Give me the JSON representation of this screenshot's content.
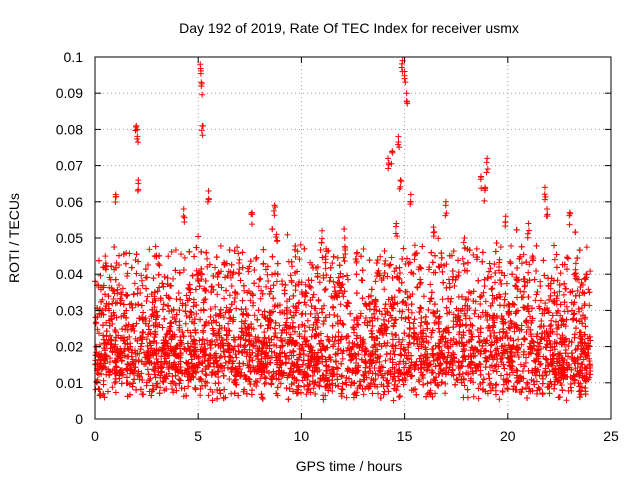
{
  "chart_data": {
    "type": "scatter",
    "title": "Day 192 of 2019, Rate Of TEC Index for receiver usmx",
    "xlabel": "GPS time / hours",
    "ylabel": "ROTI / TECUs",
    "xlim": [
      0,
      25
    ],
    "ylim": [
      0,
      0.1
    ],
    "xticks": [
      0,
      5,
      10,
      15,
      20,
      25
    ],
    "xtick_labels": [
      "0",
      "5",
      "10",
      "15",
      "20",
      "25"
    ],
    "yticks": [
      0,
      0.01,
      0.02,
      0.03,
      0.04,
      0.05,
      0.06,
      0.07,
      0.08,
      0.09,
      0.1
    ],
    "ytick_labels": [
      "0",
      "0.01",
      "0.02",
      "0.03",
      "0.04",
      "0.05",
      "0.06",
      "0.07",
      "0.08",
      "0.09",
      "0.1"
    ],
    "grid": true,
    "marker": "+",
    "color": "#ff0000",
    "series": [
      {
        "name": "ROTI",
        "x": [
          0.1,
          0.3,
          0.5,
          0.8,
          1.0,
          1.3,
          1.5,
          1.8,
          2.0,
          2.05,
          2.1,
          2.3,
          2.6,
          2.9,
          3.2,
          3.5,
          3.8,
          4.1,
          4.3,
          4.5,
          4.6,
          4.8,
          5.0,
          5.1,
          5.15,
          5.2,
          5.3,
          5.5,
          5.7,
          5.9,
          6.2,
          6.5,
          6.8,
          7.0,
          7.3,
          7.6,
          7.9,
          8.2,
          8.5,
          8.7,
          8.8,
          9.0,
          9.3,
          9.6,
          9.9,
          10.2,
          10.5,
          10.8,
          11.0,
          11.2,
          11.5,
          11.8,
          12.1,
          12.4,
          12.7,
          13.0,
          13.3,
          13.6,
          13.9,
          14.2,
          14.4,
          14.6,
          14.7,
          14.8,
          14.9,
          15.0,
          15.1,
          15.3,
          15.5,
          15.8,
          16.1,
          16.4,
          16.7,
          17.0,
          17.3,
          17.6,
          17.9,
          18.2,
          18.5,
          18.7,
          18.9,
          19.0,
          19.3,
          19.6,
          19.9,
          20.2,
          20.5,
          20.8,
          21.0,
          21.2,
          21.5,
          21.8,
          21.9,
          22.1,
          22.4,
          22.7,
          23.0,
          23.3,
          23.6,
          23.8
        ],
        "y": [
          0.014,
          0.018,
          0.045,
          0.022,
          0.062,
          0.016,
          0.028,
          0.019,
          0.081,
          0.08,
          0.066,
          0.024,
          0.019,
          0.035,
          0.015,
          0.021,
          0.018,
          0.027,
          0.058,
          0.014,
          0.036,
          0.022,
          0.04,
          0.098,
          0.093,
          0.081,
          0.019,
          0.063,
          0.025,
          0.017,
          0.021,
          0.03,
          0.014,
          0.044,
          0.022,
          0.057,
          0.018,
          0.024,
          0.036,
          0.059,
          0.051,
          0.015,
          0.029,
          0.021,
          0.017,
          0.035,
          0.019,
          0.042,
          0.052,
          0.047,
          0.013,
          0.024,
          0.05,
          0.018,
          0.046,
          0.022,
          0.016,
          0.033,
          0.029,
          0.072,
          0.074,
          0.054,
          0.078,
          0.066,
          0.099,
          0.096,
          0.09,
          0.062,
          0.048,
          0.024,
          0.018,
          0.053,
          0.021,
          0.06,
          0.016,
          0.03,
          0.05,
          0.019,
          0.047,
          0.067,
          0.064,
          0.072,
          0.028,
          0.044,
          0.056,
          0.016,
          0.022,
          0.038,
          0.054,
          0.045,
          0.02,
          0.064,
          0.058,
          0.026,
          0.034,
          0.015,
          0.057,
          0.043,
          0.022,
          0.04
        ]
      }
    ],
    "background_series": {
      "description_hidden": true,
      "x_range": [
        0,
        24
      ],
      "typical_range": [
        0.005,
        0.035
      ]
    }
  }
}
